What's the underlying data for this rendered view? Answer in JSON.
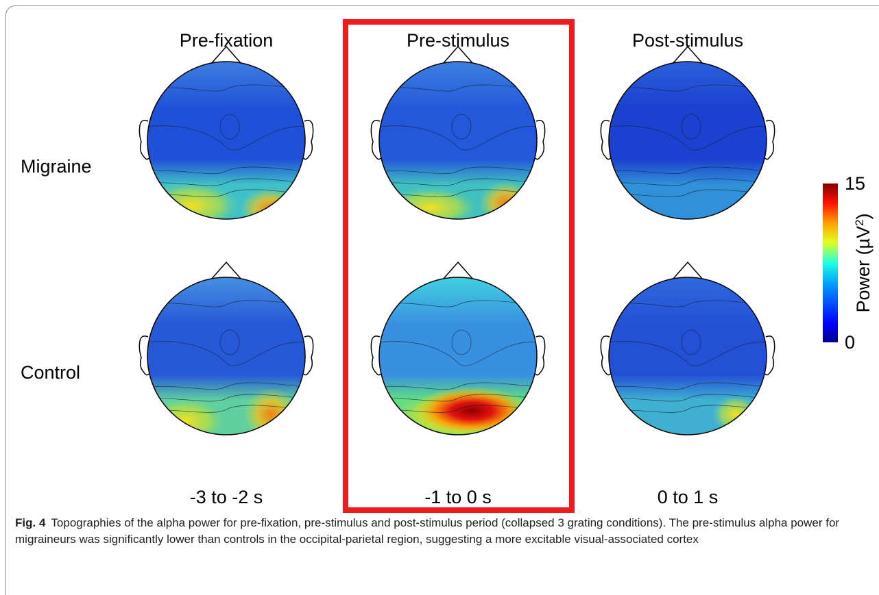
{
  "figure": {
    "columns": [
      "Pre-fixation",
      "Pre-stimulus",
      "Post-stimulus"
    ],
    "rows": [
      "Migraine",
      "Control"
    ],
    "time_windows": [
      "-3 to -2 s",
      "-1 to 0 s",
      "0 to 1 s"
    ],
    "colorbar": {
      "label": "Power (µV",
      "label_superscript": "2",
      "label_end": ")",
      "ticks": [
        0,
        15
      ]
    }
  },
  "caption": {
    "label": "Fig. 4",
    "text": "Topographies of the alpha power for pre-fixation, pre-stimulus and post-stimulus period (collapsed 3 grating conditions). The pre-stimulus alpha power for migraineurs was significantly lower than controls in the occipital-parietal region, suggesting a more excitable visual-associated cortex"
  }
}
